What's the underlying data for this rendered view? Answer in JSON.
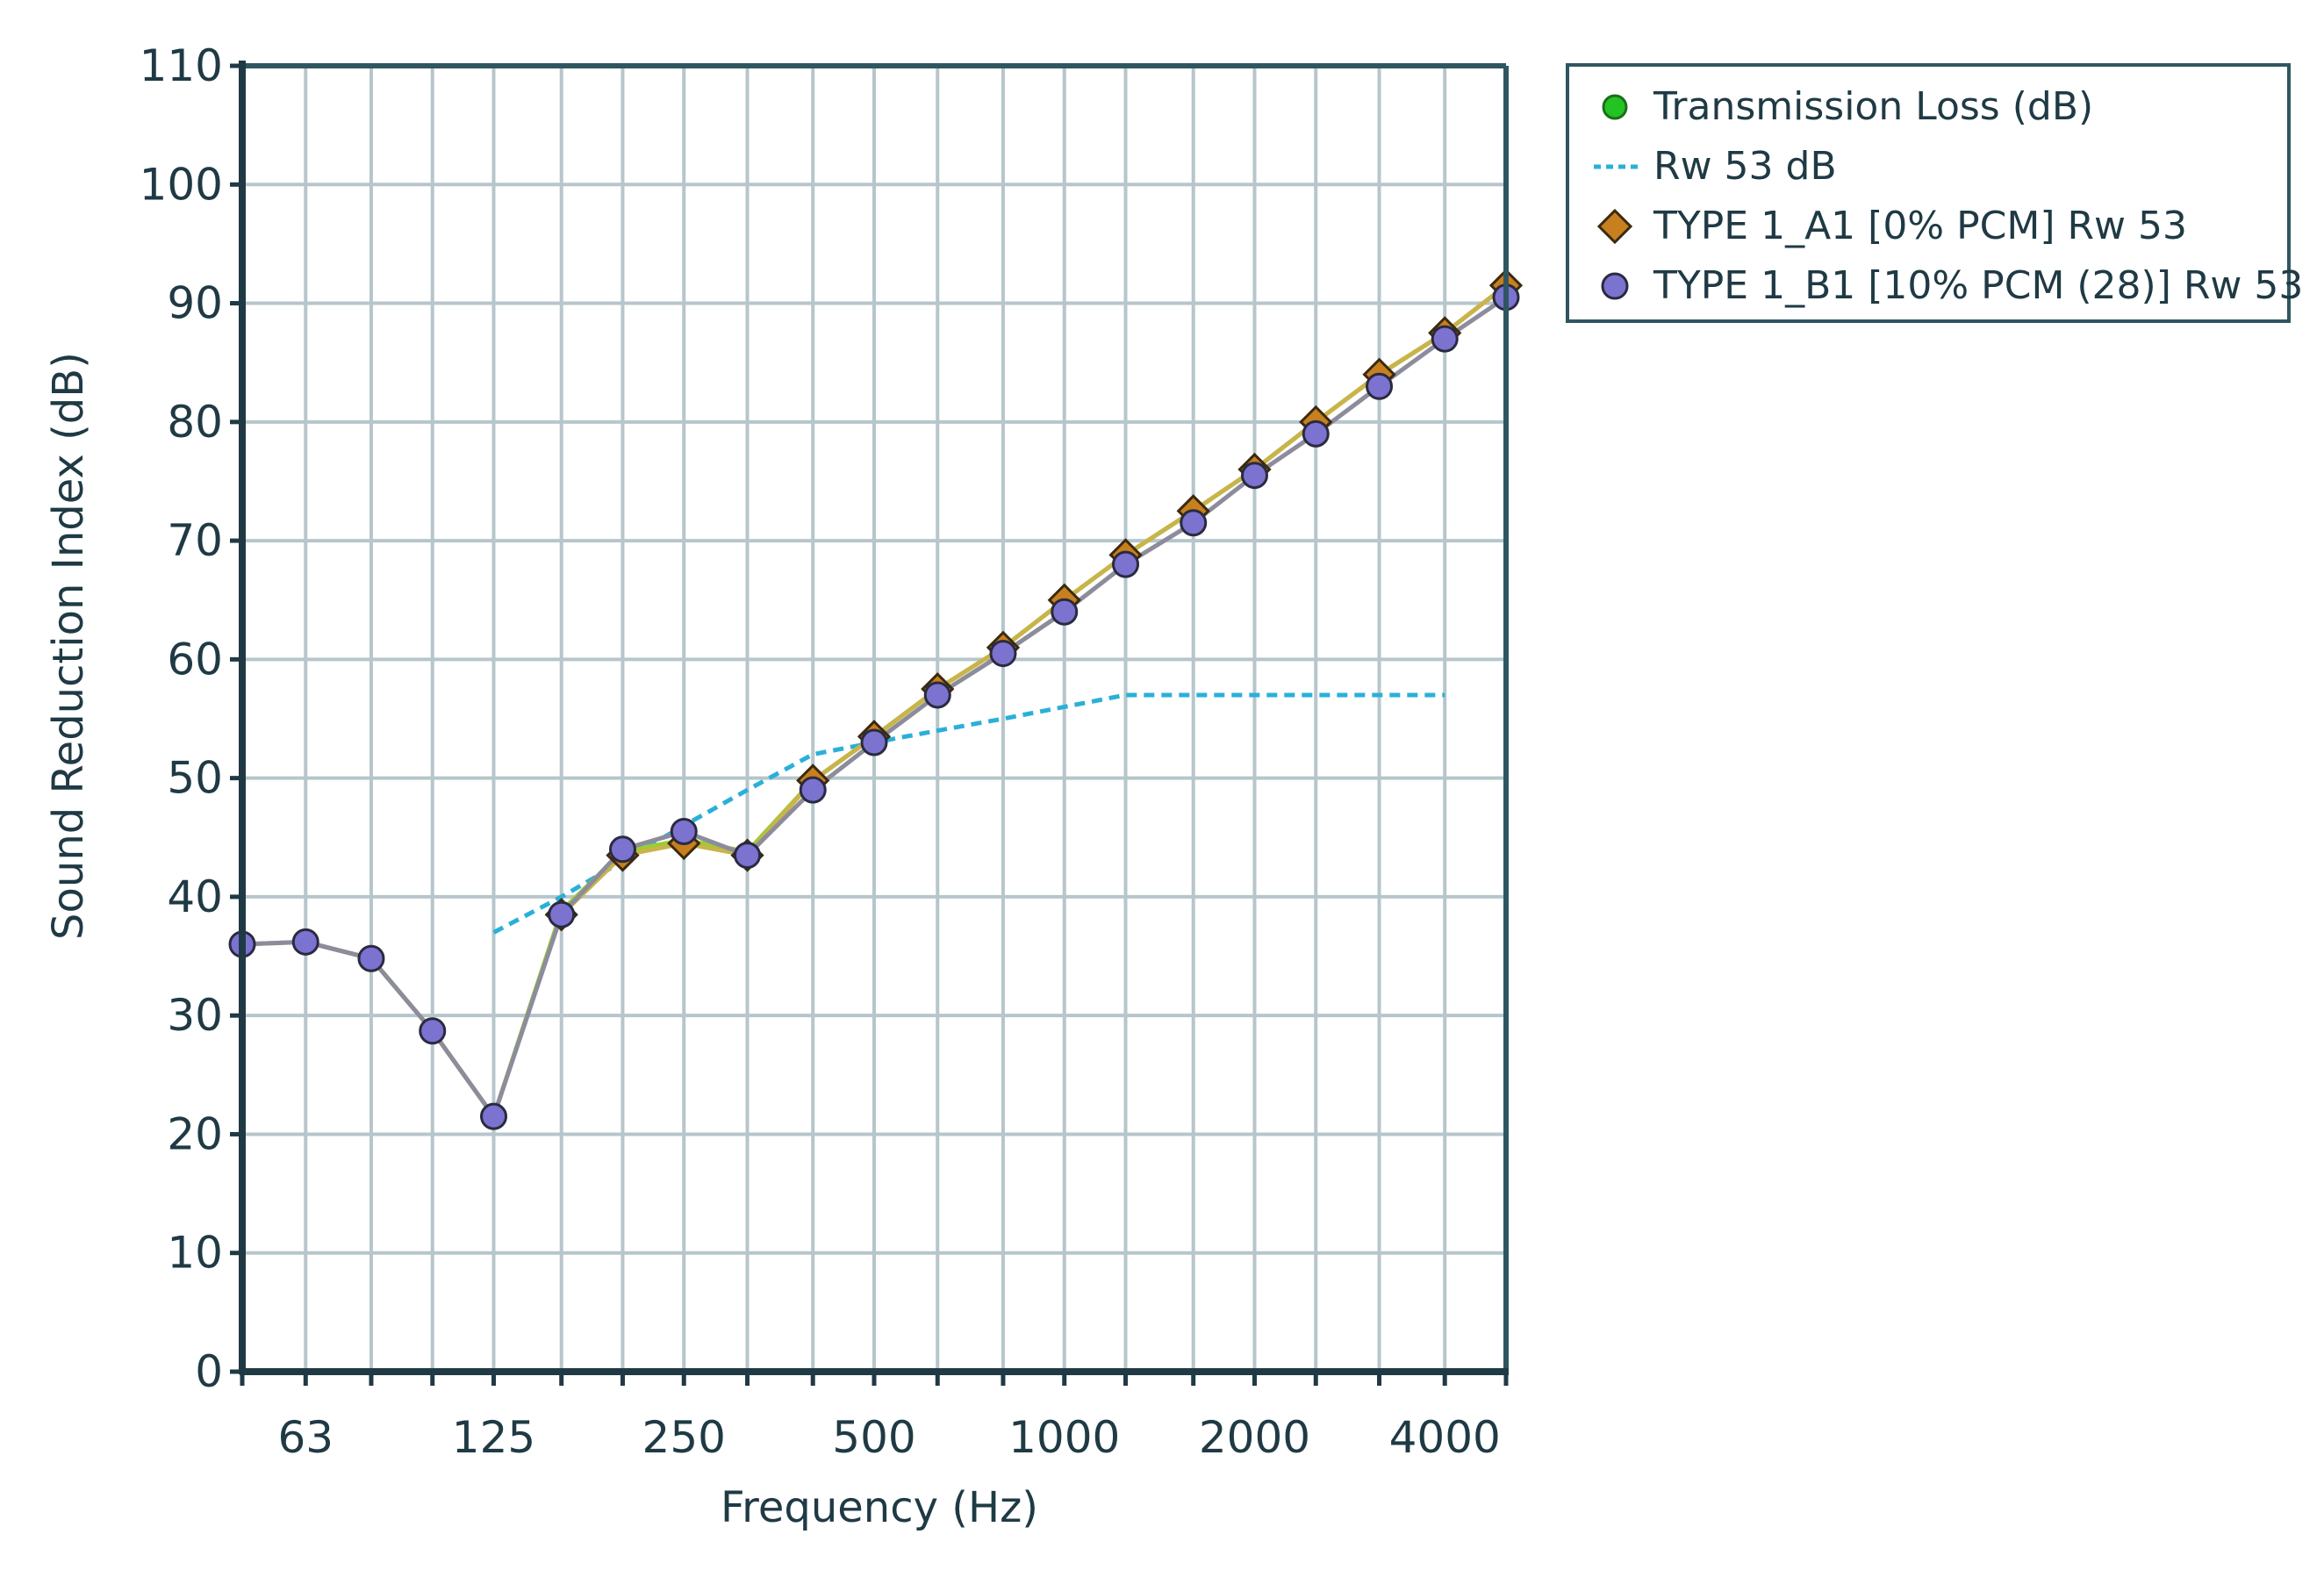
{
  "chart_data": {
    "type": "line",
    "xscale": "log",
    "xlabel": "Frequency (Hz)",
    "ylabel": "Sound Reduction Index (dB)",
    "ylim": [
      0,
      110
    ],
    "yticks": [
      0,
      10,
      20,
      30,
      40,
      50,
      60,
      70,
      80,
      90,
      100,
      110
    ],
    "xlim": [
      50,
      5000
    ],
    "xtick_labels": [
      "63",
      "125",
      "250",
      "500",
      "1000",
      "2000",
      "4000"
    ],
    "xtick_values": [
      63,
      125,
      250,
      500,
      1000,
      2000,
      4000
    ],
    "grid_frequencies": [
      50,
      63,
      80,
      100,
      125,
      160,
      200,
      250,
      315,
      400,
      500,
      630,
      800,
      1000,
      1250,
      1600,
      2000,
      2500,
      3150,
      4000,
      5000
    ],
    "grid": true,
    "legend_position": "top-right-outside",
    "series": [
      {
        "name": "Transmission Loss (dB)",
        "color": "#9acd32",
        "marker": "circle",
        "marker_color": "#22c322",
        "x": [
          50,
          63,
          80,
          100,
          125,
          160,
          200,
          250,
          315,
          400,
          500,
          630,
          800,
          1000,
          1250,
          1600,
          2000,
          2500,
          3150,
          4000,
          5000
        ],
        "values": [
          36,
          36.2,
          34.8,
          28.7,
          21.5,
          38.8,
          43.8,
          44.8,
          43.8,
          49.8,
          53.5,
          57.5,
          61,
          65,
          68.8,
          72.5,
          76,
          80,
          84,
          87.5,
          91.5
        ]
      },
      {
        "name": "Rw 53 dB",
        "color": "#2ab0d8",
        "dashed": true,
        "x": [
          125,
          160,
          200,
          250,
          315,
          400,
          500,
          630,
          800,
          1000,
          1250,
          1600,
          2000,
          2500,
          3150,
          4000
        ],
        "values": [
          37,
          40,
          43,
          46,
          49,
          52,
          53,
          54,
          55,
          56,
          57,
          57,
          57,
          57,
          57,
          57
        ]
      },
      {
        "name": "TYPE 1_A1 [0% PCM] Rw 53",
        "color": "#c8b44a",
        "marker": "diamond",
        "marker_color": "#c87f1e",
        "x": [
          160,
          200,
          250,
          315,
          400,
          500,
          630,
          800,
          1000,
          1250,
          1600,
          2000,
          2500,
          3150,
          4000,
          5000
        ],
        "values": [
          38.5,
          43.5,
          44.5,
          43.5,
          49.8,
          53.5,
          57.5,
          61,
          65,
          68.8,
          72.5,
          76,
          80,
          84,
          87.5,
          91.5
        ]
      },
      {
        "name": "TYPE 1_B1 [10% PCM (28)] Rw 53",
        "color": "#8c8c9c",
        "marker": "circle",
        "marker_color": "#7b73cf",
        "x": [
          50,
          63,
          80,
          100,
          125,
          160,
          200,
          250,
          315,
          400,
          500,
          630,
          800,
          1000,
          1250,
          1600,
          2000,
          2500,
          3150,
          4000,
          5000
        ],
        "values": [
          36,
          36.2,
          34.8,
          28.7,
          21.5,
          38.5,
          44,
          45.5,
          43.5,
          49,
          53,
          57,
          60.5,
          64,
          68,
          71.5,
          75.5,
          79,
          83,
          87,
          90.5
        ]
      }
    ]
  },
  "legend": {
    "items": [
      {
        "label": "Transmission Loss (dB)",
        "icon": "circle-marker-icon",
        "color": "#22c322"
      },
      {
        "label": "Rw 53 dB",
        "icon": "dashed-line-icon",
        "color": "#2ab0d8"
      },
      {
        "label": "TYPE 1_A1 [0% PCM] Rw 53",
        "icon": "diamond-marker-icon",
        "color": "#c87f1e"
      },
      {
        "label": "TYPE 1_B1 [10% PCM (28)] Rw 53",
        "icon": "circle-marker-icon",
        "color": "#7b73cf"
      }
    ]
  }
}
